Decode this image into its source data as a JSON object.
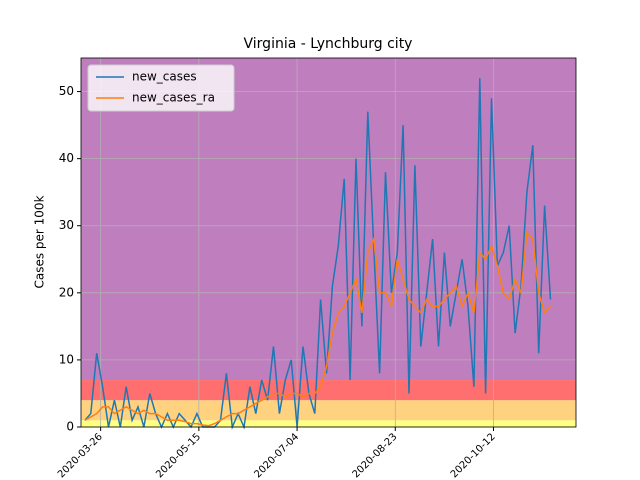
{
  "chart_data": {
    "type": "line",
    "title": "Virginia - Lynchburg city",
    "ylabel": "Cases per 100k",
    "x": [
      "2020-03-18",
      "2020-03-21",
      "2020-03-24",
      "2020-03-27",
      "2020-03-30",
      "2020-04-02",
      "2020-04-05",
      "2020-04-08",
      "2020-04-11",
      "2020-04-14",
      "2020-04-17",
      "2020-04-20",
      "2020-04-23",
      "2020-04-26",
      "2020-04-29",
      "2020-05-02",
      "2020-05-05",
      "2020-05-08",
      "2020-05-11",
      "2020-05-14",
      "2020-05-17",
      "2020-05-20",
      "2020-05-23",
      "2020-05-26",
      "2020-05-29",
      "2020-06-01",
      "2020-06-04",
      "2020-06-07",
      "2020-06-10",
      "2020-06-13",
      "2020-06-16",
      "2020-06-19",
      "2020-06-22",
      "2020-06-25",
      "2020-06-28",
      "2020-07-01",
      "2020-07-04",
      "2020-07-07",
      "2020-07-10",
      "2020-07-13",
      "2020-07-16",
      "2020-07-19",
      "2020-07-22",
      "2020-07-25",
      "2020-07-28",
      "2020-07-31",
      "2020-08-03",
      "2020-08-06",
      "2020-08-09",
      "2020-08-12",
      "2020-08-15",
      "2020-08-18",
      "2020-08-21",
      "2020-08-24",
      "2020-08-27",
      "2020-08-30",
      "2020-09-02",
      "2020-09-05",
      "2020-09-08",
      "2020-09-11",
      "2020-09-14",
      "2020-09-17",
      "2020-09-20",
      "2020-09-23",
      "2020-09-26",
      "2020-09-29",
      "2020-10-02",
      "2020-10-05",
      "2020-10-08",
      "2020-10-11",
      "2020-10-14",
      "2020-10-17",
      "2020-10-20",
      "2020-10-23",
      "2020-10-26",
      "2020-10-29",
      "2020-11-01",
      "2020-11-04",
      "2020-11-07",
      "2020-11-10"
    ],
    "series": [
      {
        "name": "new_cases",
        "color": "#1f77b4",
        "values": [
          1,
          2,
          11,
          6,
          0,
          4,
          0,
          6,
          1,
          3,
          0,
          5,
          2,
          0,
          2,
          0,
          2,
          1,
          0,
          2,
          0,
          0,
          0,
          1,
          8,
          0,
          2,
          0,
          6,
          2,
          7,
          4,
          12,
          2,
          7,
          10,
          0,
          12,
          5,
          2,
          19,
          8,
          21,
          27,
          37,
          7,
          40,
          15,
          47,
          27,
          8,
          38,
          20,
          26,
          45,
          5,
          39,
          12,
          20,
          28,
          12,
          26,
          15,
          20,
          25,
          18,
          6,
          52,
          5,
          49,
          24,
          26,
          30,
          14,
          21,
          35,
          42,
          11,
          33,
          19
        ]
      },
      {
        "name": "new_cases_ra",
        "color": "#ff7f0e",
        "values": [
          1,
          1.5,
          2,
          3,
          3,
          2,
          2.5,
          3,
          2.5,
          2,
          2.5,
          2,
          2,
          1.5,
          1,
          1,
          1,
          0.8,
          0.5,
          0.5,
          0.3,
          0.2,
          0.5,
          1,
          1.5,
          2,
          2,
          2.5,
          3,
          3.5,
          4,
          4.5,
          5,
          5,
          4.5,
          5,
          5,
          4.5,
          5,
          5,
          6,
          9,
          14,
          17,
          18,
          20,
          22,
          17,
          26,
          28,
          20,
          20,
          18,
          25,
          22,
          19,
          18,
          17,
          19,
          18,
          18,
          19,
          20,
          21,
          18,
          20,
          17,
          26,
          25,
          27,
          24,
          20,
          19,
          22,
          20,
          29,
          28,
          20,
          17,
          18
        ]
      }
    ],
    "xlim": [
      "2020-03-16",
      "2020-11-23"
    ],
    "xticks": [
      "2020-03-26",
      "2020-05-15",
      "2020-07-04",
      "2020-08-23",
      "2020-10-12"
    ],
    "ylim": [
      0,
      55
    ],
    "yticks": [
      0,
      10,
      20,
      30,
      40,
      50
    ],
    "bands": [
      {
        "ymin": 0,
        "ymax": 1,
        "color": "#ffff80"
      },
      {
        "ymin": 1,
        "ymax": 4,
        "color": "#ffd27f"
      },
      {
        "ymin": 4,
        "ymax": 7,
        "color": "#ff6f6f"
      },
      {
        "ymin": 7,
        "ymax": 55,
        "color": "#bf7fbf"
      }
    ],
    "grid": true,
    "legend": "upper left"
  }
}
